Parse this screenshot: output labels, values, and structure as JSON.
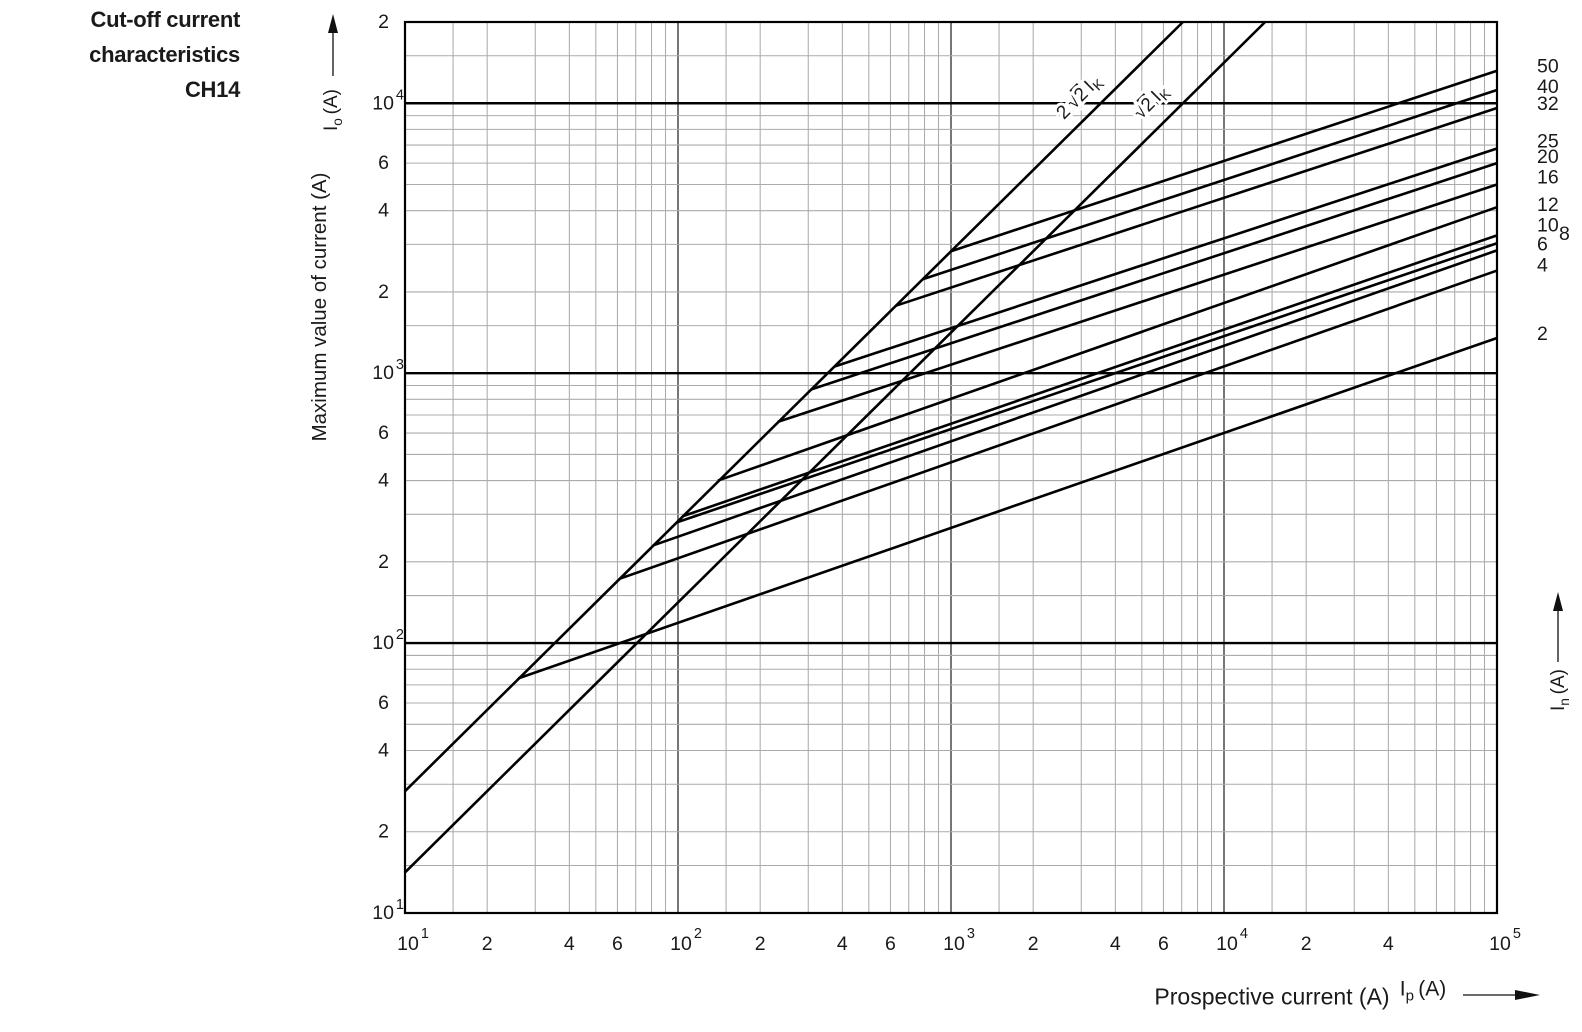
{
  "title": {
    "line1": "Cut-off current",
    "line2": "characteristics",
    "line3": "CH14"
  },
  "axes": {
    "x_title": "Prospective current (A)",
    "x_symbol_base": "I",
    "x_symbol_sub": "p",
    "x_symbol_unit": "(A)",
    "y_title": "Maximum value of current (A)",
    "y_symbol_base": "I",
    "y_symbol_sub": "o",
    "y_symbol_unit": "(A)",
    "right_symbol_base": "I",
    "right_symbol_sub": "n",
    "right_symbol_unit": "(A)"
  },
  "chart_data": {
    "type": "line",
    "title": "Cut-off current characteristics CH14",
    "xlabel": "Prospective current Ip (A)",
    "ylabel": "Maximum value of current Io (A)",
    "x_axis": {
      "scale": "log",
      "min": 10,
      "max": 100000,
      "ticks": [
        {
          "v": 10,
          "base": "10",
          "exp": "1"
        },
        {
          "v": 20,
          "label": "2"
        },
        {
          "v": 40,
          "label": "4"
        },
        {
          "v": 60,
          "label": "6"
        },
        {
          "v": 100,
          "base": "10",
          "exp": "2"
        },
        {
          "v": 200,
          "label": "2"
        },
        {
          "v": 400,
          "label": "4"
        },
        {
          "v": 600,
          "label": "6"
        },
        {
          "v": 1000,
          "base": "10",
          "exp": "3"
        },
        {
          "v": 2000,
          "label": "2"
        },
        {
          "v": 4000,
          "label": "4"
        },
        {
          "v": 6000,
          "label": "6"
        },
        {
          "v": 10000,
          "base": "10",
          "exp": "4"
        },
        {
          "v": 20000,
          "label": "2"
        },
        {
          "v": 40000,
          "label": "4"
        },
        {
          "v": 100000,
          "base": "10",
          "exp": "5"
        }
      ]
    },
    "y_axis": {
      "scale": "log",
      "min": 10,
      "max": 20000,
      "ticks": [
        {
          "v": 20000,
          "label": "2"
        },
        {
          "v": 10000,
          "base": "10",
          "exp": "4"
        },
        {
          "v": 6000,
          "label": "6"
        },
        {
          "v": 4000,
          "label": "4"
        },
        {
          "v": 2000,
          "label": "2"
        },
        {
          "v": 1000,
          "base": "10",
          "exp": "3"
        },
        {
          "v": 600,
          "label": "6"
        },
        {
          "v": 400,
          "label": "4"
        },
        {
          "v": 200,
          "label": "2"
        },
        {
          "v": 100,
          "base": "10",
          "exp": "2"
        },
        {
          "v": 60,
          "label": "6"
        },
        {
          "v": 40,
          "label": "4"
        },
        {
          "v": 20,
          "label": "2"
        },
        {
          "v": 10,
          "base": "10",
          "exp": "1"
        }
      ]
    },
    "grid": {
      "minor_steps": [
        1,
        1.5,
        2,
        3,
        4,
        5,
        6,
        7,
        8,
        9
      ],
      "on": true
    },
    "colors": {
      "curve": "#000000",
      "grid_minor": "#ababab",
      "grid_major_v": "#3c3c3c",
      "grid_major_h": "#000000"
    },
    "reference_lines": [
      {
        "name": "asymmetrical-peak",
        "coef": "2",
        "radicand": "2",
        "base": "I",
        "sub": "K",
        "multiplier": 2.828,
        "label_at": [
          1083,
          101
        ]
      },
      {
        "name": "symmetrical-peak",
        "coef": "",
        "radicand": "2",
        "base": "I",
        "sub": "K",
        "multiplier": 1.414,
        "label_at": [
          1155,
          106
        ]
      }
    ],
    "series": [
      {
        "rating": "50",
        "points": [
          [
            1000,
            2830
          ],
          [
            100000,
            13200
          ]
        ],
        "label_dy": -3
      },
      {
        "rating": "40",
        "points": [
          [
            790,
            2230
          ],
          [
            100000,
            11200
          ]
        ],
        "label_dy": -2
      },
      {
        "rating": "32",
        "points": [
          [
            630,
            1780
          ],
          [
            100000,
            9600
          ]
        ],
        "label_dy": -3
      },
      {
        "rating": "25",
        "points": [
          [
            376,
            1060
          ],
          [
            100000,
            6800
          ]
        ],
        "label_dy": -6
      },
      {
        "rating": "20",
        "points": [
          [
            307,
            870
          ],
          [
            100000,
            6000
          ]
        ],
        "label_dy": -5
      },
      {
        "rating": "16",
        "points": [
          [
            232,
            660
          ],
          [
            100000,
            5000
          ]
        ],
        "label_dy": -6
      },
      {
        "rating": "12",
        "points": [
          [
            140,
            400
          ],
          [
            100000,
            4120
          ]
        ],
        "label_dy": -1
      },
      {
        "rating": "10",
        "points": [
          [
            104,
            295
          ],
          [
            100000,
            3240
          ]
        ],
        "label_dy": -9
      },
      {
        "rating": "8",
        "points": [
          [
            99,
            280
          ],
          [
            100000,
            3030
          ]
        ],
        "label_dy": -8,
        "label_dx": 22
      },
      {
        "rating": "6",
        "points": [
          [
            81,
            230
          ],
          [
            100000,
            2850
          ]
        ],
        "label_dy": -5
      },
      {
        "rating": "4",
        "points": [
          [
            61,
            173
          ],
          [
            100000,
            2400
          ]
        ],
        "label_dy": -4
      },
      {
        "rating": "2",
        "points": [
          [
            26,
            74
          ],
          [
            100000,
            1350
          ]
        ],
        "label_dy": -3
      }
    ]
  }
}
